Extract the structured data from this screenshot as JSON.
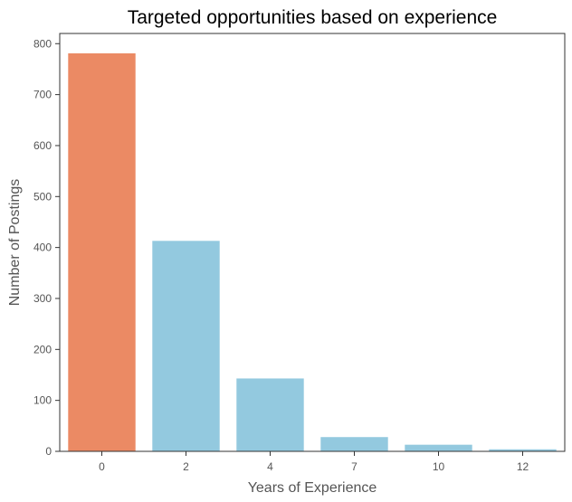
{
  "chart_data": {
    "type": "bar",
    "title": "Targeted opportunities based on experience",
    "xlabel": "Years of Experience",
    "ylabel": "Number of Postings",
    "categories": [
      "0",
      "2",
      "4",
      "7",
      "10",
      "12"
    ],
    "values": [
      781,
      413,
      143,
      28,
      13,
      4
    ],
    "ylim": [
      0,
      820
    ],
    "yticks": [
      0,
      100,
      200,
      300,
      400,
      500,
      600,
      700,
      800
    ],
    "grid": false,
    "legend": "none",
    "colors": {
      "highlight": "#EB8A64",
      "default": "#93C9DF"
    },
    "highlight_index": 0
  }
}
